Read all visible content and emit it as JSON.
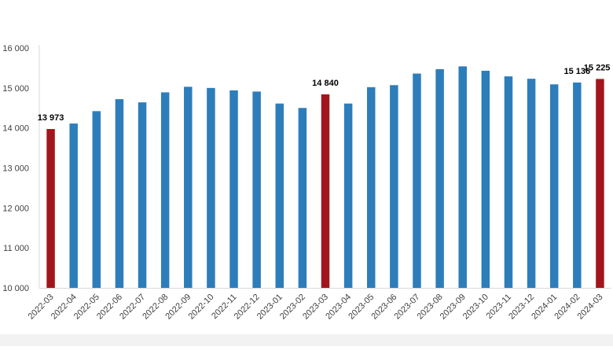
{
  "chart_data": {
    "type": "bar",
    "categories": [
      "2022-03",
      "2022-04",
      "2022-05",
      "2022-06",
      "2022-07",
      "2022-08",
      "2022-09",
      "2022-10",
      "2022-11",
      "2022-12",
      "2023-01",
      "2023-02",
      "2023-03",
      "2023-04",
      "2023-05",
      "2023-06",
      "2023-07",
      "2023-08",
      "2023-09",
      "2023-10",
      "2023-11",
      "2023-12",
      "2024-01",
      "2024-02",
      "2024-03"
    ],
    "values": [
      13973,
      14110,
      14420,
      14720,
      14640,
      14890,
      15030,
      15000,
      14940,
      14910,
      14610,
      14500,
      14840,
      14610,
      15020,
      15070,
      15360,
      15470,
      15540,
      15430,
      15290,
      15230,
      15090,
      15136,
      15225
    ],
    "highlighted": [
      "2022-03",
      "2023-03",
      "2024-03"
    ],
    "data_labels": [
      {
        "category": "2022-03",
        "text": "13 973"
      },
      {
        "category": "2023-03",
        "text": "14 840"
      },
      {
        "category": "2024-02",
        "text": "15 136"
      },
      {
        "category": "2024-03",
        "text": "15 225"
      }
    ],
    "y_ticks": [
      {
        "value": 10000,
        "label": "10 000"
      },
      {
        "value": 11000,
        "label": "11 000"
      },
      {
        "value": 12000,
        "label": "12 000"
      },
      {
        "value": 13000,
        "label": "13 000"
      },
      {
        "value": 14000,
        "label": "14 000"
      },
      {
        "value": 15000,
        "label": "15 000"
      },
      {
        "value": 16000,
        "label": "16 000"
      }
    ],
    "ylim": [
      10000,
      16000
    ],
    "grid": false,
    "colors": {
      "default": "#2e7dbb",
      "highlight": "#a3151c"
    }
  }
}
